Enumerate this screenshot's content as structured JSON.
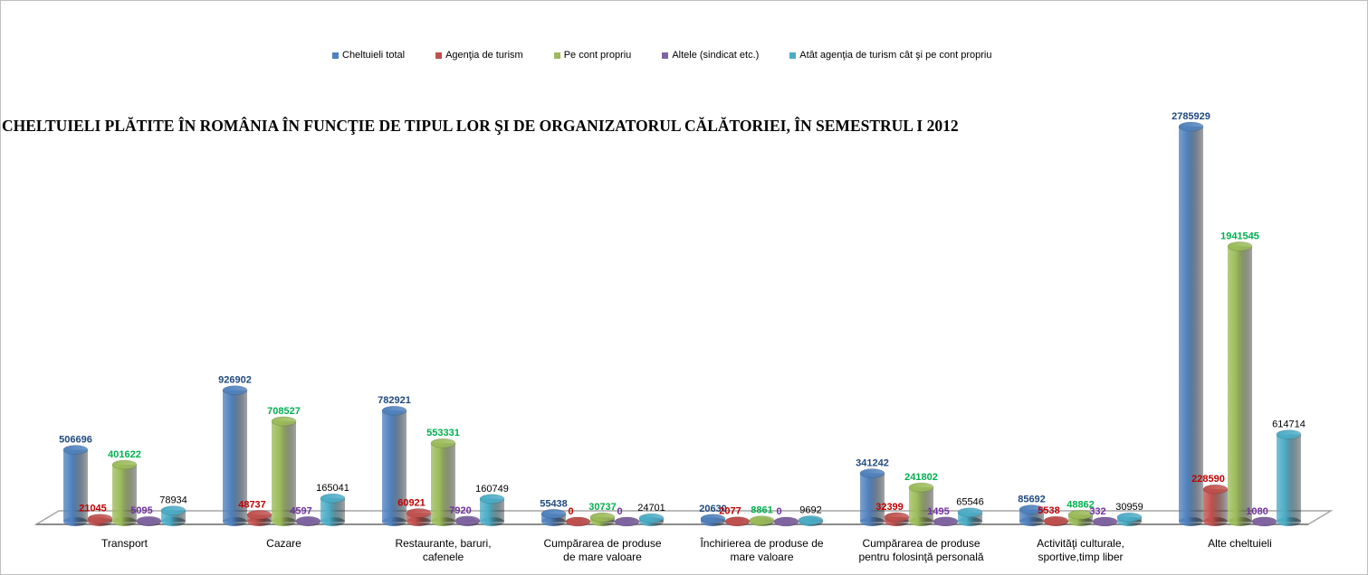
{
  "chart_data": {
    "type": "bar",
    "style": "3d-cylinder",
    "title": "CHELTUIELI PLĂTITE ÎN ROMÂNIA ÎN FUNCŢIE DE TIPUL LOR ŞI DE ORGANIZATORUL CĂLĂTORIEI, ÎN SEMESTRUL I 2012",
    "legend_position": "top",
    "grid": false,
    "categories": [
      [
        "Transport"
      ],
      [
        "Cazare"
      ],
      [
        "Restaurante, baruri,",
        "cafenele"
      ],
      [
        "Cumpărarea de produse",
        "de mare valoare"
      ],
      [
        "Închirierea de produse de",
        "mare valoare"
      ],
      [
        "Cumpărarea de produse",
        "pentru folosinţă personală"
      ],
      [
        "Activităţi culturale,",
        "sportive,timp liber"
      ],
      [
        "Alte cheltuieli"
      ]
    ],
    "ylim": [
      0,
      2800000
    ],
    "series": [
      {
        "name": "Cheltuieli total",
        "color": "#4f81bd",
        "label_color": "#1f497d",
        "values": [
          506696,
          926902,
          782921,
          55438,
          20630,
          341242,
          85692,
          2785929
        ]
      },
      {
        "name": "Agenţia de turism",
        "color": "#c0504d",
        "label_color": "#c00000",
        "values": [
          21045,
          48737,
          60921,
          0,
          2077,
          32399,
          5538,
          228590
        ]
      },
      {
        "name": "Pe cont propriu",
        "color": "#9bbb59",
        "label_color": "#00b050",
        "values": [
          401622,
          708527,
          553331,
          30737,
          8861,
          241802,
          48862,
          1941545
        ]
      },
      {
        "name": "Altele (sindicat etc.)",
        "color": "#8064a2",
        "label_color": "#7030a0",
        "values": [
          5095,
          4597,
          7920,
          0,
          0,
          1495,
          332,
          1080
        ]
      },
      {
        "name": "Atât agenţia de turism cât şi pe cont propriu",
        "color": "#4bacc6",
        "label_color": "#000000",
        "values": [
          78934,
          165041,
          160749,
          24701,
          9692,
          65546,
          30959,
          614714
        ]
      }
    ]
  }
}
